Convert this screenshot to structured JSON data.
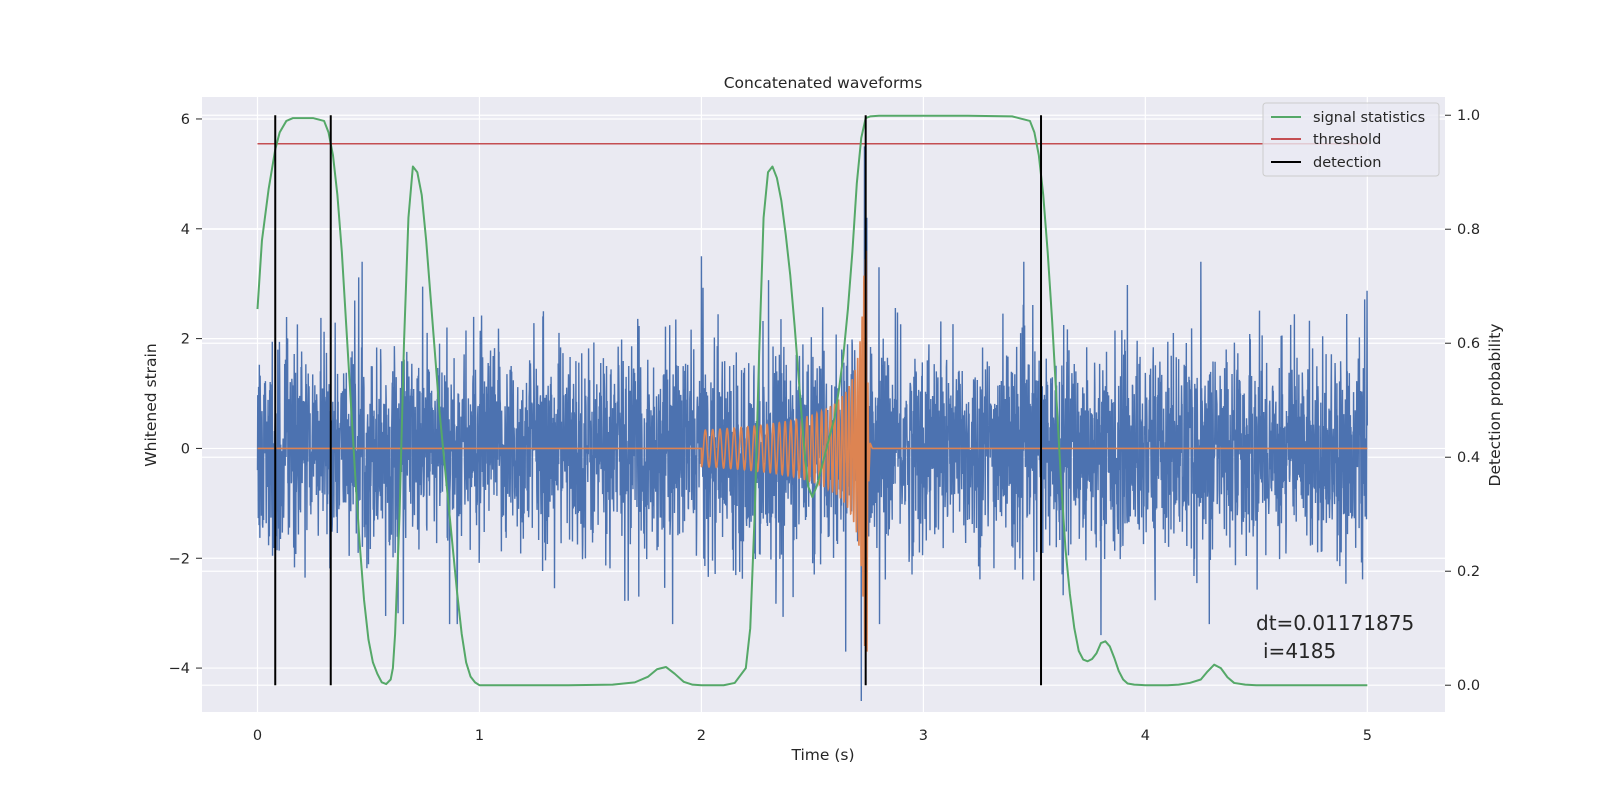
{
  "chart_data": {
    "type": "line",
    "title": "Concatenated waveforms",
    "xlabel": "Time (s)",
    "ylabel": "Whitened strain",
    "ylabel_right": "Detection probability",
    "xlim": [
      -0.25,
      5.35
    ],
    "ylim": [
      -4.8,
      6.4
    ],
    "ylim_right": [
      -0.047,
      1.032
    ],
    "x_ticks": [
      0,
      1,
      2,
      3,
      4,
      5
    ],
    "y_ticks": [
      -4,
      -2,
      0,
      2,
      4,
      6
    ],
    "y_ticks_right": [
      0.0,
      0.2,
      0.4,
      0.6,
      0.8,
      1.0
    ],
    "x_tick_labels": [
      "0",
      "1",
      "2",
      "3",
      "4",
      "5"
    ],
    "y_tick_labels": [
      "−4",
      "−2",
      "0",
      "2",
      "4",
      "6"
    ],
    "y_tick_labels_right": [
      "0.0",
      "0.2",
      "0.4",
      "0.6",
      "0.8",
      "1.0"
    ],
    "grid": true,
    "legend_position": "top-right",
    "legend": [
      {
        "label": "signal statistics",
        "color": "#55a868"
      },
      {
        "label": "threshold",
        "color": "#c44e52"
      },
      {
        "label": "detection",
        "color": "#000000"
      }
    ],
    "series": [
      {
        "name": "",
        "axis": "left",
        "color": "#4c72b0",
        "description_kind": "noise",
        "x_range": [
          0,
          5
        ],
        "amplitude_std": 0.9,
        "spikes": [
          {
            "x": 2.72,
            "y": -4.6
          },
          {
            "x": 2.735,
            "y": 5.5
          },
          {
            "x": 2.74,
            "y": -3.8
          },
          {
            "x": 2.745,
            "y": 4.2
          },
          {
            "x": 2.65,
            "y": -3.7
          },
          {
            "x": 3.8,
            "y": -3.4
          },
          {
            "x": 4.25,
            "y": 3.4
          },
          {
            "x": 0.9,
            "y": -3.2
          },
          {
            "x": 2.8,
            "y": 3.3
          },
          {
            "x": 2.0,
            "y": 3.5
          }
        ]
      },
      {
        "name": "",
        "axis": "left",
        "color": "#dd8452",
        "chirp": {
          "start": 2.0,
          "merger": 2.74,
          "end": 2.76,
          "peak_amplitude": 3.6,
          "min_amplitude": -3.7
        }
      },
      {
        "name": "signal statistics",
        "axis": "right",
        "color": "#55a868",
        "x": [
          0.0,
          0.02,
          0.05,
          0.08,
          0.1,
          0.13,
          0.16,
          0.2,
          0.25,
          0.3,
          0.32,
          0.34,
          0.36,
          0.38,
          0.4,
          0.42,
          0.44,
          0.46,
          0.48,
          0.5,
          0.52,
          0.54,
          0.56,
          0.58,
          0.6,
          0.61,
          0.62,
          0.64,
          0.66,
          0.68,
          0.7,
          0.72,
          0.74,
          0.76,
          0.78,
          0.8,
          0.82,
          0.84,
          0.86,
          0.88,
          0.9,
          0.92,
          0.94,
          0.96,
          0.98,
          1.0,
          1.05,
          1.1,
          1.2,
          1.4,
          1.6,
          1.7,
          1.76,
          1.8,
          1.84,
          1.88,
          1.92,
          1.96,
          2.0,
          2.1,
          2.15,
          2.2,
          2.22,
          2.24,
          2.26,
          2.28,
          2.3,
          2.32,
          2.34,
          2.36,
          2.38,
          2.4,
          2.42,
          2.44,
          2.46,
          2.48,
          2.5,
          2.52,
          2.54,
          2.56,
          2.58,
          2.6,
          2.62,
          2.64,
          2.66,
          2.68,
          2.7,
          2.72,
          2.74,
          2.76,
          2.8,
          2.9,
          3.0,
          3.2,
          3.4,
          3.48,
          3.5,
          3.52,
          3.54,
          3.56,
          3.58,
          3.6,
          3.62,
          3.64,
          3.66,
          3.68,
          3.7,
          3.72,
          3.74,
          3.76,
          3.78,
          3.8,
          3.82,
          3.84,
          3.86,
          3.88,
          3.9,
          3.92,
          3.95,
          4.0,
          4.1,
          4.15,
          4.2,
          4.25,
          4.28,
          4.31,
          4.34,
          4.37,
          4.4,
          4.45,
          4.5,
          4.7,
          4.9,
          5.0
        ],
        "y": [
          0.66,
          0.78,
          0.87,
          0.94,
          0.97,
          0.99,
          0.995,
          0.995,
          0.995,
          0.99,
          0.97,
          0.93,
          0.86,
          0.76,
          0.63,
          0.5,
          0.37,
          0.25,
          0.15,
          0.08,
          0.04,
          0.02,
          0.005,
          0.002,
          0.01,
          0.03,
          0.09,
          0.3,
          0.6,
          0.82,
          0.91,
          0.9,
          0.86,
          0.78,
          0.68,
          0.58,
          0.48,
          0.4,
          0.32,
          0.24,
          0.16,
          0.09,
          0.04,
          0.015,
          0.005,
          0.0,
          0.0,
          0.0,
          0.0,
          0.0,
          0.001,
          0.005,
          0.015,
          0.028,
          0.032,
          0.02,
          0.006,
          0.001,
          0.0,
          0.0,
          0.004,
          0.03,
          0.1,
          0.3,
          0.58,
          0.82,
          0.9,
          0.91,
          0.89,
          0.85,
          0.79,
          0.72,
          0.63,
          0.53,
          0.43,
          0.35,
          0.33,
          0.35,
          0.38,
          0.41,
          0.44,
          0.47,
          0.52,
          0.58,
          0.66,
          0.76,
          0.88,
          0.96,
          0.995,
          0.998,
          0.999,
          0.999,
          0.999,
          0.999,
          0.998,
          0.99,
          0.97,
          0.93,
          0.86,
          0.76,
          0.64,
          0.5,
          0.36,
          0.24,
          0.16,
          0.1,
          0.06,
          0.045,
          0.042,
          0.046,
          0.056,
          0.074,
          0.077,
          0.068,
          0.048,
          0.025,
          0.01,
          0.003,
          0.001,
          0.0,
          0.0,
          0.001,
          0.004,
          0.01,
          0.024,
          0.036,
          0.03,
          0.014,
          0.004,
          0.001,
          0.0,
          0.0,
          0.0,
          0.0
        ]
      },
      {
        "name": "threshold",
        "axis": "right",
        "color": "#c44e52",
        "x": [
          0,
          5
        ],
        "y": [
          0.95,
          0.95
        ]
      }
    ],
    "detections": {
      "name": "detection",
      "color": "#000000",
      "x": [
        0.08,
        0.33,
        2.74,
        3.53
      ],
      "y_range_right": [
        0.0,
        1.0
      ]
    },
    "annotation": {
      "line1": "dt=0.01171875",
      "line2": "i=4185"
    }
  }
}
